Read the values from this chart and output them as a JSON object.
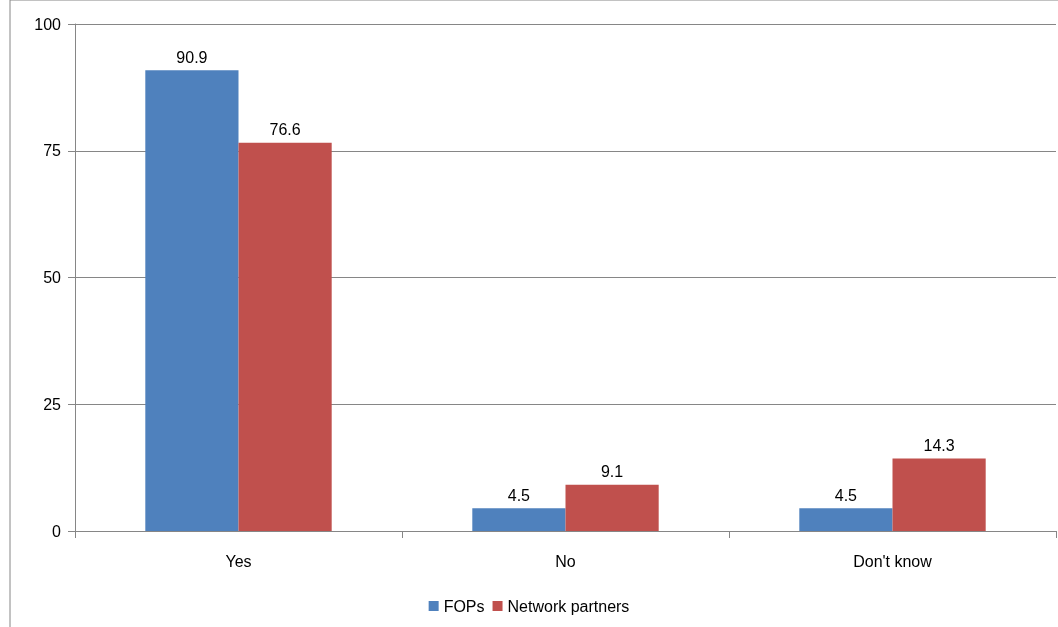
{
  "chart_data": {
    "type": "bar",
    "categories": [
      "Yes",
      "No",
      "Don't know"
    ],
    "series": [
      {
        "name": "FOPs",
        "color": "#4f81bd",
        "values": [
          90.9,
          4.5,
          4.5
        ]
      },
      {
        "name": "Network partners",
        "color": "#c0504d",
        "values": [
          76.6,
          9.1,
          14.3
        ]
      }
    ],
    "ylim": [
      0,
      100
    ],
    "yticks": [
      0,
      25,
      50,
      75,
      100
    ],
    "grid": "y",
    "legend": "bottom",
    "data_labels": true
  }
}
